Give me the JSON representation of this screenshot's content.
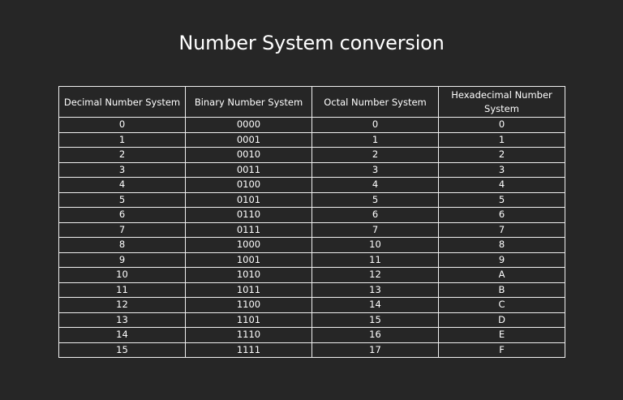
{
  "title": "Number System conversion",
  "table": {
    "headers": [
      "Decimal Number System",
      "Binary Number System",
      "Octal Number System",
      "Hexadecimal Number System"
    ],
    "rows": [
      [
        "0",
        "0000",
        "0",
        "0"
      ],
      [
        "1",
        "0001",
        "1",
        "1"
      ],
      [
        "2",
        "0010",
        "2",
        "2"
      ],
      [
        "3",
        "0011",
        "3",
        "3"
      ],
      [
        "4",
        "0100",
        "4",
        "4"
      ],
      [
        "5",
        "0101",
        "5",
        "5"
      ],
      [
        "6",
        "0110",
        "6",
        "6"
      ],
      [
        "7",
        "0111",
        "7",
        "7"
      ],
      [
        "8",
        "1000",
        "10",
        "8"
      ],
      [
        "9",
        "1001",
        "11",
        "9"
      ],
      [
        "10",
        "1010",
        "12",
        "A"
      ],
      [
        "11",
        "1011",
        "13",
        "B"
      ],
      [
        "12",
        "1100",
        "14",
        "C"
      ],
      [
        "13",
        "1101",
        "15",
        "D"
      ],
      [
        "14",
        "1110",
        "16",
        "E"
      ],
      [
        "15",
        "1111",
        "17",
        "F"
      ]
    ]
  },
  "colors": {
    "background": "#262626",
    "text": "#ffffff",
    "grid": "#f0f0f0"
  }
}
